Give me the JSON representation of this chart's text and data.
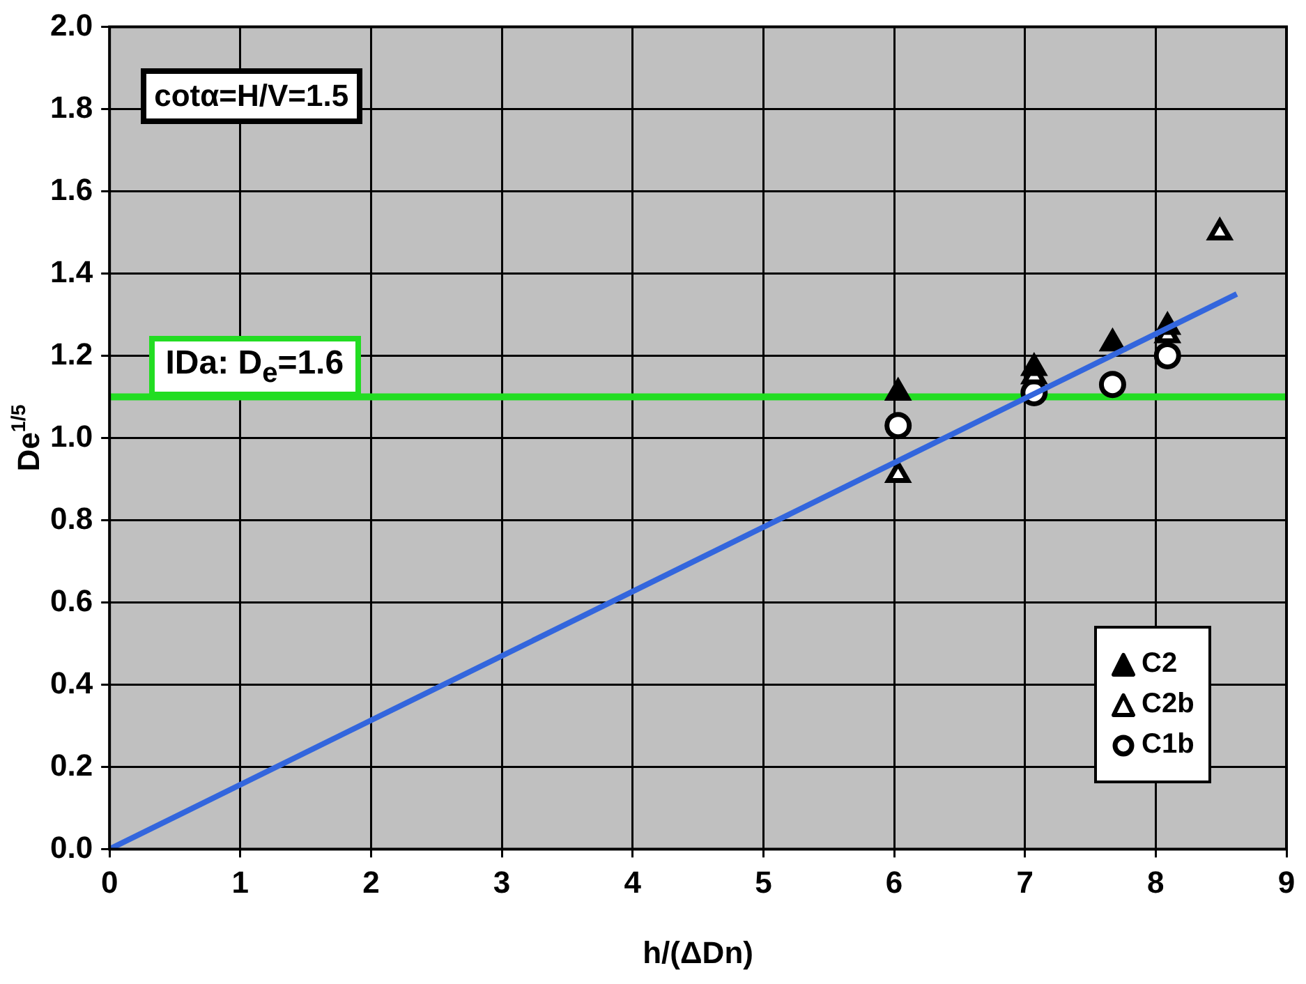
{
  "chart_data": {
    "type": "scatter",
    "xlabel": "h/(ΔDn)",
    "ylabel": "De$^{1/5}$",
    "xlim": [
      0,
      9
    ],
    "xticks": [
      0,
      1,
      2,
      3,
      4,
      5,
      6,
      7,
      8,
      9
    ],
    "ylim": [
      0,
      2
    ],
    "yticks": [
      {
        "value": 0,
        "label": "0.0"
      },
      0.2,
      0.4,
      0.6,
      0.8,
      {
        "value": 1,
        "label": "1.0"
      },
      1.2,
      1.4,
      1.6,
      1.8,
      {
        "value": 2,
        "label": "2.0"
      }
    ],
    "grid": true,
    "legend": "bottom right",
    "series": [
      {
        "name": "C2",
        "color": "#000000",
        "marker": "triangle",
        "x": [
          6.03,
          7.07,
          7.67,
          8.09
        ],
        "values": [
          1.11,
          1.17,
          1.23,
          1.27
        ]
      },
      {
        "name": "C2b",
        "color": "#ffffff",
        "marker": "triangle",
        "x": [
          6.03,
          7.07,
          7.67,
          8.09,
          8.49
        ],
        "values": [
          0.91,
          1.15,
          null,
          1.25,
          1.5
        ]
      },
      {
        "name": "C1b",
        "color": "#ffffff",
        "marker": "circle",
        "x": [
          6.03,
          7.07,
          7.67,
          8.09
        ],
        "values": [
          1.03,
          1.11,
          1.13,
          1.2
        ]
      },
      {
        "type": "line",
        "color": "#3366dd",
        "marker": "none",
        "x": [
          0,
          8.62
        ],
        "values": [
          0,
          1.35
        ]
      }
    ],
    "ref_lines": [
      {
        "axis": "y",
        "value": 1.1,
        "color": "#22dd22"
      }
    ],
    "annotations": [
      "cotα=H/V=1.5",
      {
        "text": "IDa: D$_{e}$=1.6",
        "x": 0.3,
        "y": 1.1
      }
    ]
  }
}
